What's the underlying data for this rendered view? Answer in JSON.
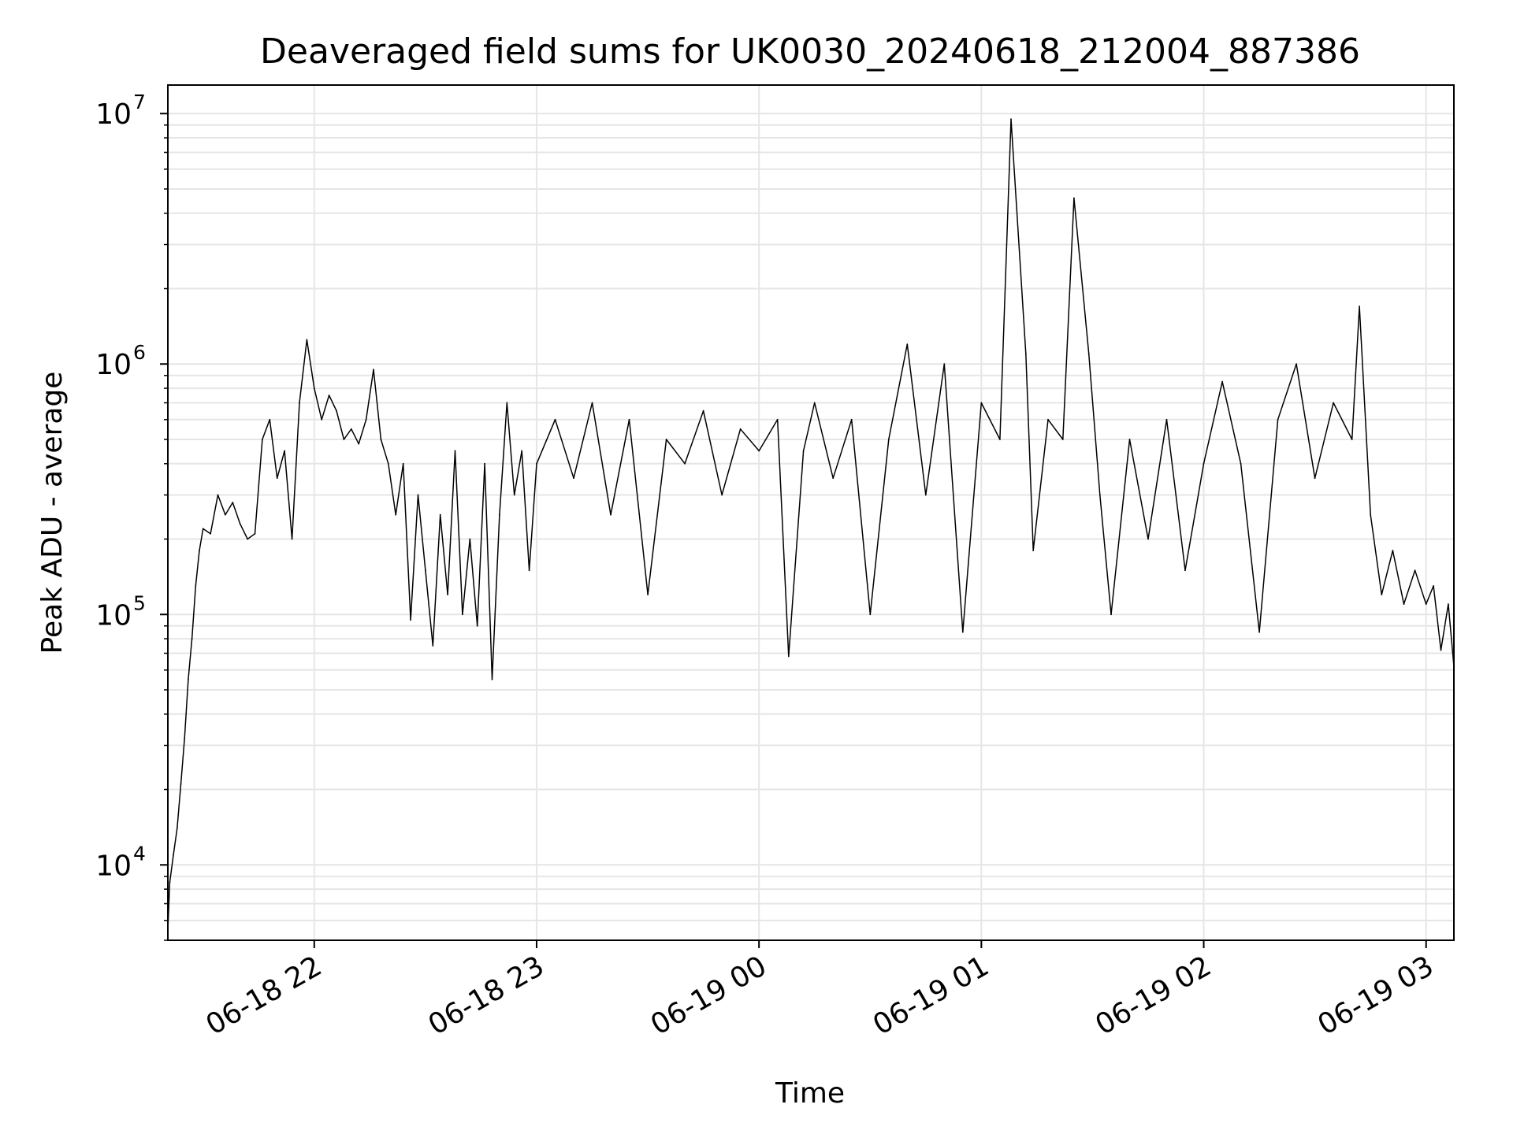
{
  "chart_data": {
    "type": "line",
    "title": "Deaveraged field sums for UK0030_20240618_212004_887386",
    "xlabel": "Time",
    "ylabel": "Peak ADU - average",
    "yscale": "log",
    "ylim": [
      5000,
      13000000
    ],
    "xlim": [
      "2024-06-18 21:20:30",
      "2024-06-19 03:07:30"
    ],
    "grid": true,
    "legend": "none",
    "line_color": "#000000",
    "x_ticks": [
      {
        "label": "06-18 22",
        "t": "2024-06-18 22:00"
      },
      {
        "label": "06-18 23",
        "t": "2024-06-18 23:00"
      },
      {
        "label": "06-19 00",
        "t": "2024-06-19 00:00"
      },
      {
        "label": "06-19 01",
        "t": "2024-06-19 01:00"
      },
      {
        "label": "06-19 02",
        "t": "2024-06-19 02:00"
      },
      {
        "label": "06-19 03",
        "t": "2024-06-19 03:00"
      }
    ],
    "y_ticks": [
      {
        "base": "10",
        "exp": "4",
        "value": 10000
      },
      {
        "base": "10",
        "exp": "5",
        "value": 100000
      },
      {
        "base": "10",
        "exp": "6",
        "value": 1000000
      },
      {
        "base": "10",
        "exp": "7",
        "value": 10000000
      }
    ],
    "series": [
      {
        "color": "#000000",
        "points": [
          [
            "2024-06-18 21:20:30",
            5500
          ],
          [
            "2024-06-18 21:21:00",
            8500
          ],
          [
            "2024-06-18 21:22:00",
            11000
          ],
          [
            "2024-06-18 21:23:00",
            14000
          ],
          [
            "2024-06-18 21:24:00",
            21000
          ],
          [
            "2024-06-18 21:25:00",
            32000
          ],
          [
            "2024-06-18 21:26:00",
            55000
          ],
          [
            "2024-06-18 21:27:00",
            80000
          ],
          [
            "2024-06-18 21:28:00",
            130000
          ],
          [
            "2024-06-18 21:29:00",
            180000
          ],
          [
            "2024-06-18 21:30:00",
            220000
          ],
          [
            "2024-06-18 21:32:00",
            210000
          ],
          [
            "2024-06-18 21:34:00",
            300000
          ],
          [
            "2024-06-18 21:36:00",
            250000
          ],
          [
            "2024-06-18 21:38:00",
            280000
          ],
          [
            "2024-06-18 21:40:00",
            230000
          ],
          [
            "2024-06-18 21:42:00",
            200000
          ],
          [
            "2024-06-18 21:44:00",
            210000
          ],
          [
            "2024-06-18 21:46:00",
            500000
          ],
          [
            "2024-06-18 21:48:00",
            600000
          ],
          [
            "2024-06-18 21:50:00",
            350000
          ],
          [
            "2024-06-18 21:52:00",
            450000
          ],
          [
            "2024-06-18 21:54:00",
            200000
          ],
          [
            "2024-06-18 21:56:00",
            700000
          ],
          [
            "2024-06-18 21:58:00",
            1250000
          ],
          [
            "2024-06-18 22:00:00",
            800000
          ],
          [
            "2024-06-18 22:02:00",
            600000
          ],
          [
            "2024-06-18 22:04:00",
            750000
          ],
          [
            "2024-06-18 22:06:00",
            650000
          ],
          [
            "2024-06-18 22:08:00",
            500000
          ],
          [
            "2024-06-18 22:10:00",
            550000
          ],
          [
            "2024-06-18 22:12:00",
            480000
          ],
          [
            "2024-06-18 22:14:00",
            600000
          ],
          [
            "2024-06-18 22:16:00",
            950000
          ],
          [
            "2024-06-18 22:18:00",
            500000
          ],
          [
            "2024-06-18 22:20:00",
            400000
          ],
          [
            "2024-06-18 22:22:00",
            250000
          ],
          [
            "2024-06-18 22:24:00",
            400000
          ],
          [
            "2024-06-18 22:26:00",
            95000
          ],
          [
            "2024-06-18 22:28:00",
            300000
          ],
          [
            "2024-06-18 22:30:00",
            150000
          ],
          [
            "2024-06-18 22:32:00",
            75000
          ],
          [
            "2024-06-18 22:34:00",
            250000
          ],
          [
            "2024-06-18 22:36:00",
            120000
          ],
          [
            "2024-06-18 22:38:00",
            450000
          ],
          [
            "2024-06-18 22:40:00",
            100000
          ],
          [
            "2024-06-18 22:42:00",
            200000
          ],
          [
            "2024-06-18 22:44:00",
            90000
          ],
          [
            "2024-06-18 22:46:00",
            400000
          ],
          [
            "2024-06-18 22:48:00",
            55000
          ],
          [
            "2024-06-18 22:50:00",
            250000
          ],
          [
            "2024-06-18 22:52:00",
            700000
          ],
          [
            "2024-06-18 22:54:00",
            300000
          ],
          [
            "2024-06-18 22:56:00",
            450000
          ],
          [
            "2024-06-18 22:58:00",
            150000
          ],
          [
            "2024-06-18 23:00:00",
            400000
          ],
          [
            "2024-06-18 23:05:00",
            600000
          ],
          [
            "2024-06-18 23:10:00",
            350000
          ],
          [
            "2024-06-18 23:15:00",
            700000
          ],
          [
            "2024-06-18 23:20:00",
            250000
          ],
          [
            "2024-06-18 23:25:00",
            600000
          ],
          [
            "2024-06-18 23:30:00",
            120000
          ],
          [
            "2024-06-18 23:35:00",
            500000
          ],
          [
            "2024-06-18 23:40:00",
            400000
          ],
          [
            "2024-06-18 23:45:00",
            650000
          ],
          [
            "2024-06-18 23:50:00",
            300000
          ],
          [
            "2024-06-18 23:55:00",
            550000
          ],
          [
            "2024-06-19 00:00:00",
            450000
          ],
          [
            "2024-06-19 00:05:00",
            600000
          ],
          [
            "2024-06-19 00:08:00",
            68000
          ],
          [
            "2024-06-19 00:12:00",
            450000
          ],
          [
            "2024-06-19 00:15:00",
            700000
          ],
          [
            "2024-06-19 00:20:00",
            350000
          ],
          [
            "2024-06-19 00:25:00",
            600000
          ],
          [
            "2024-06-19 00:30:00",
            100000
          ],
          [
            "2024-06-19 00:35:00",
            500000
          ],
          [
            "2024-06-19 00:40:00",
            1200000
          ],
          [
            "2024-06-19 00:45:00",
            300000
          ],
          [
            "2024-06-19 00:50:00",
            1000000
          ],
          [
            "2024-06-19 00:55:00",
            85000
          ],
          [
            "2024-06-19 01:00:00",
            700000
          ],
          [
            "2024-06-19 01:05:00",
            500000
          ],
          [
            "2024-06-19 01:08:00",
            9500000
          ],
          [
            "2024-06-19 01:12:00",
            1100000
          ],
          [
            "2024-06-19 01:14:00",
            180000
          ],
          [
            "2024-06-19 01:18:00",
            600000
          ],
          [
            "2024-06-19 01:22:00",
            500000
          ],
          [
            "2024-06-19 01:25:00",
            4600000
          ],
          [
            "2024-06-19 01:29:00",
            1100000
          ],
          [
            "2024-06-19 01:32:00",
            300000
          ],
          [
            "2024-06-19 01:35:00",
            100000
          ],
          [
            "2024-06-19 01:40:00",
            500000
          ],
          [
            "2024-06-19 01:45:00",
            200000
          ],
          [
            "2024-06-19 01:50:00",
            600000
          ],
          [
            "2024-06-19 01:55:00",
            150000
          ],
          [
            "2024-06-19 02:00:00",
            400000
          ],
          [
            "2024-06-19 02:05:00",
            850000
          ],
          [
            "2024-06-19 02:10:00",
            400000
          ],
          [
            "2024-06-19 02:15:00",
            85000
          ],
          [
            "2024-06-19 02:20:00",
            600000
          ],
          [
            "2024-06-19 02:25:00",
            1000000
          ],
          [
            "2024-06-19 02:30:00",
            350000
          ],
          [
            "2024-06-19 02:35:00",
            700000
          ],
          [
            "2024-06-19 02:40:00",
            500000
          ],
          [
            "2024-06-19 02:42:00",
            1700000
          ],
          [
            "2024-06-19 02:45:00",
            250000
          ],
          [
            "2024-06-19 02:48:00",
            120000
          ],
          [
            "2024-06-19 02:51:00",
            180000
          ],
          [
            "2024-06-19 02:54:00",
            110000
          ],
          [
            "2024-06-19 02:57:00",
            150000
          ],
          [
            "2024-06-19 03:00:00",
            110000
          ],
          [
            "2024-06-19 03:02:00",
            130000
          ],
          [
            "2024-06-19 03:04:00",
            72000
          ],
          [
            "2024-06-19 03:06:00",
            110000
          ],
          [
            "2024-06-19 03:07:30",
            62000
          ]
        ]
      }
    ]
  }
}
